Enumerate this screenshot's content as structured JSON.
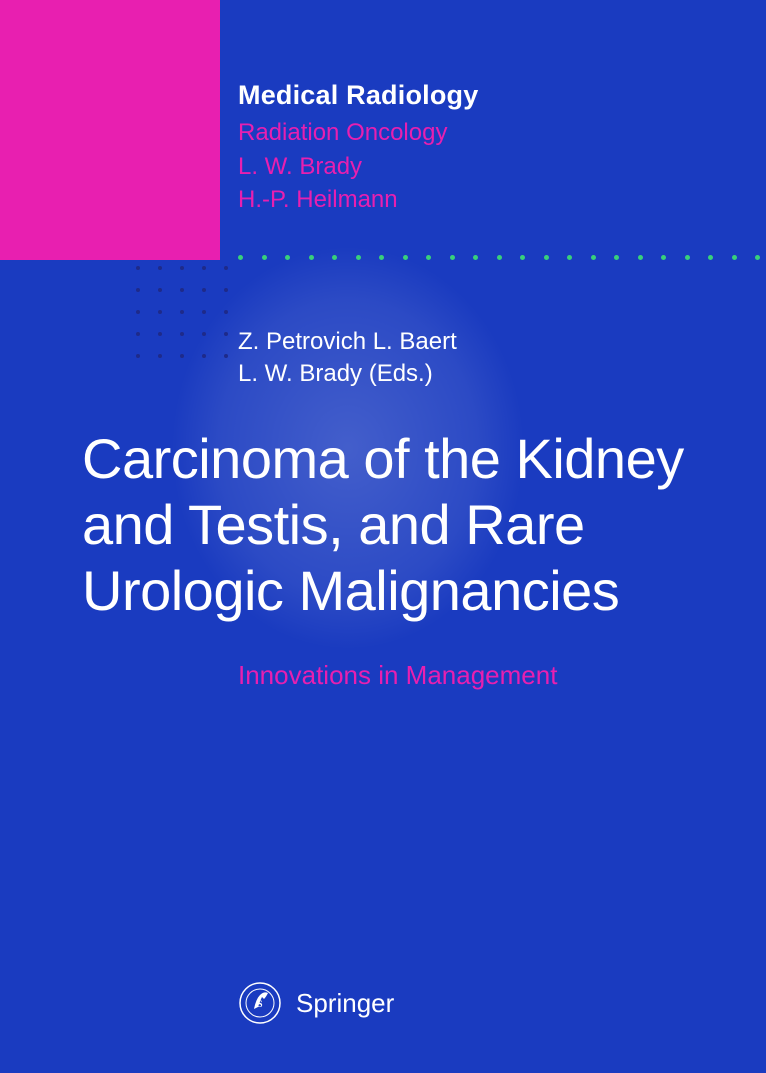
{
  "colors": {
    "background": "#1a3bc0",
    "magenta": "#e81fb0",
    "white": "#ffffff",
    "green_dot": "#38d07a",
    "dark_dot": "#1e2a8a"
  },
  "series": {
    "title": "Medical Radiology",
    "subtitle": "Radiation Oncology",
    "editors": [
      "L. W. Brady",
      "H.-P. Heilmann"
    ]
  },
  "book": {
    "editors_line1": "Z. Petrovich   L. Baert",
    "editors_line2": "L. W. Brady (Eds.)",
    "title": "Carcinoma of the Kidney and Testis, and Rare Urologic Malignancies",
    "subtitle": "Innovations in Management"
  },
  "publisher": {
    "name": "Springer"
  },
  "decor": {
    "dot_row_count": 24,
    "dot_grid_cols": 5,
    "dot_grid_rows": 5
  },
  "typography": {
    "series_title_size": 27,
    "series_sub_size": 24,
    "editors_size": 24,
    "main_title_size": 56,
    "subtitle_size": 26,
    "publisher_size": 26
  }
}
